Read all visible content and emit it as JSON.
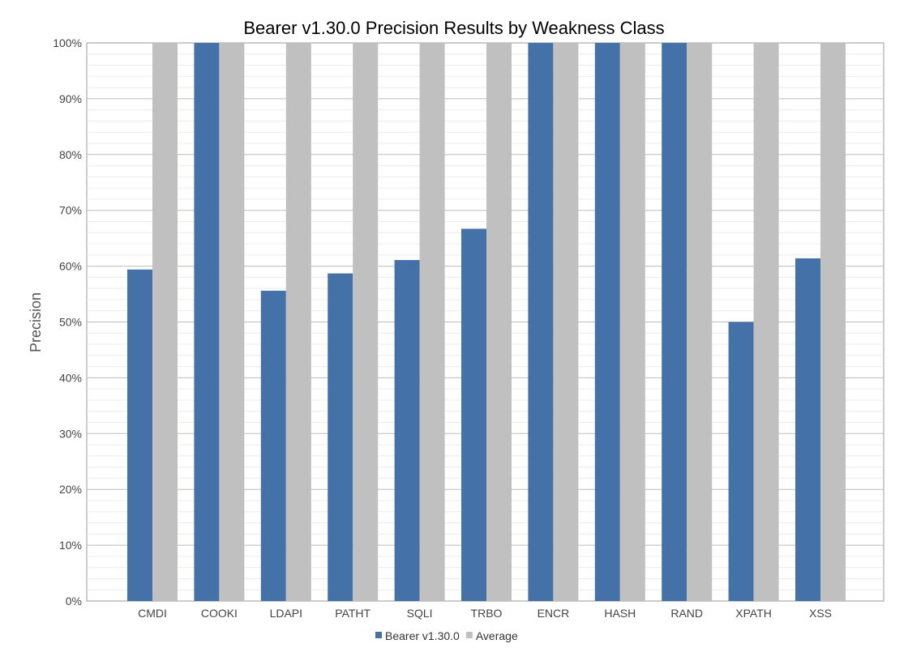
{
  "chart_data": {
    "type": "bar",
    "title": "Bearer v1.30.0 Precision Results by Weakness Class",
    "ylabel": "Precision",
    "xlabel": "",
    "ylim": [
      0,
      100
    ],
    "y_ticks": [
      "0%",
      "10%",
      "20%",
      "30%",
      "40%",
      "50%",
      "60%",
      "70%",
      "80%",
      "90%",
      "100%"
    ],
    "categories": [
      "CMDI",
      "COOKI",
      "LDAPI",
      "PATHT",
      "SQLI",
      "TRBO",
      "ENCR",
      "HASH",
      "RAND",
      "XPATH",
      "XSS"
    ],
    "series": [
      {
        "name": "Bearer v1.30.0",
        "color": "#4472a8",
        "values": [
          59.4,
          100,
          55.6,
          58.7,
          61.1,
          66.7,
          100,
          100,
          100,
          50.0,
          61.4
        ]
      },
      {
        "name": "Average",
        "color": "#c0c0c0",
        "values": [
          100,
          100,
          100,
          100,
          100,
          100,
          100,
          100,
          100,
          100,
          100
        ]
      }
    ],
    "grid": true,
    "legend_position": "bottom-center"
  }
}
